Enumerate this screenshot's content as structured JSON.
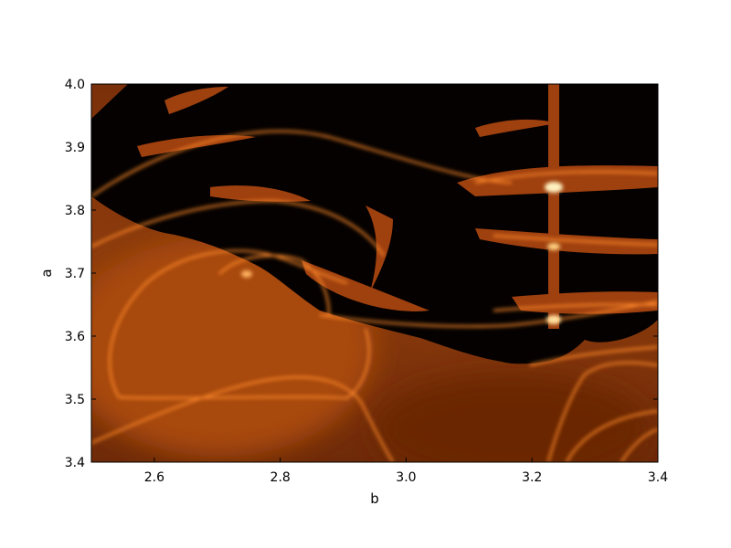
{
  "chart_data": {
    "type": "heatmap",
    "title": "",
    "xlabel": "b",
    "ylabel": "a",
    "xlim": [
      2.5,
      3.4
    ],
    "ylim": [
      3.4,
      4.0
    ],
    "x_ticks": [
      {
        "value": 2.6,
        "label": "2.6"
      },
      {
        "value": 2.8,
        "label": "2.8"
      },
      {
        "value": 3.0,
        "label": "3.0"
      },
      {
        "value": 3.2,
        "label": "3.2"
      },
      {
        "value": 3.4,
        "label": "3.4"
      }
    ],
    "y_ticks": [
      {
        "value": 3.4,
        "label": "3.4"
      },
      {
        "value": 3.5,
        "label": "3.5"
      },
      {
        "value": 3.6,
        "label": "3.6"
      },
      {
        "value": 3.7,
        "label": "3.7"
      },
      {
        "value": 3.8,
        "label": "3.8"
      },
      {
        "value": 3.9,
        "label": "3.9"
      },
      {
        "value": 4.0,
        "label": "4.0"
      }
    ],
    "grid": false,
    "colormap": "gist_heat",
    "colors": {
      "low": "#000000",
      "mid": "#8a3a0a",
      "high": "#ff9a30",
      "peak": "#fff0c0"
    }
  }
}
